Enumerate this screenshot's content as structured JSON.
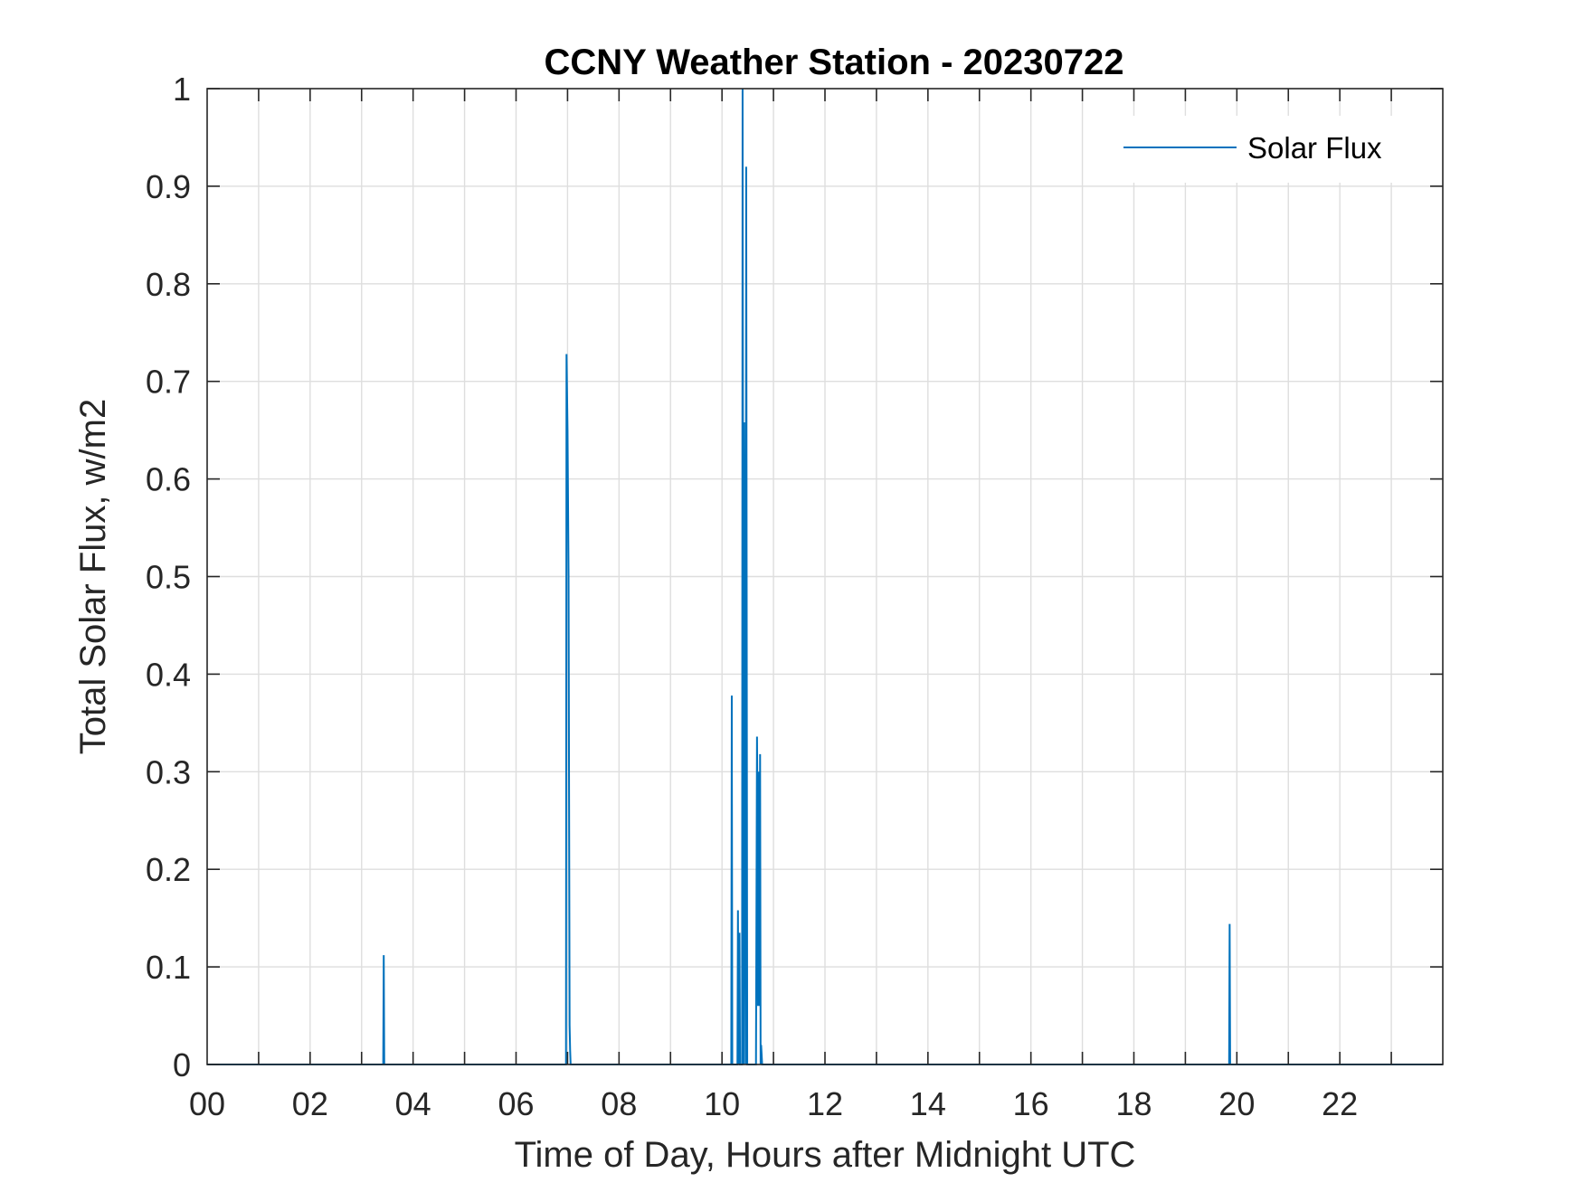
{
  "chart_data": {
    "type": "line",
    "title": "CCNY Weather Station - 20230722",
    "xlabel": "Time of Day, Hours after Midnight UTC",
    "ylabel": "Total Solar Flux, w/m2",
    "xlim": [
      0,
      24
    ],
    "ylim": [
      0,
      1
    ],
    "xticks": [
      0,
      2,
      4,
      6,
      8,
      10,
      12,
      14,
      16,
      18,
      20,
      22
    ],
    "xtick_labels": [
      "00",
      "02",
      "04",
      "06",
      "08",
      "10",
      "12",
      "14",
      "16",
      "18",
      "20",
      "22"
    ],
    "yticks": [
      0,
      0.1,
      0.2,
      0.3,
      0.4,
      0.5,
      0.6,
      0.7,
      0.8,
      0.9,
      1
    ],
    "ytick_labels": [
      "0",
      "0.1",
      "0.2",
      "0.3",
      "0.4",
      "0.5",
      "0.6",
      "0.7",
      "0.8",
      "0.9",
      "1"
    ],
    "grid": true,
    "legend_position": "top-right",
    "series": [
      {
        "name": "Solar Flux",
        "color": "#0072BD",
        "x": [
          0,
          3.42,
          3.43,
          3.44,
          6.97,
          6.98,
          7.0,
          7.02,
          7.04,
          7.05,
          7.06,
          10.18,
          10.19,
          10.2,
          10.3,
          10.31,
          10.32,
          10.34,
          10.35,
          10.36,
          10.39,
          10.4,
          10.42,
          10.43,
          10.46,
          10.47,
          10.49,
          10.5,
          10.66,
          10.68,
          10.69,
          10.7,
          10.71,
          10.72,
          10.73,
          10.74,
          10.75,
          10.76,
          10.78,
          19.85,
          19.86,
          19.87,
          24
        ],
        "y": [
          0,
          0,
          0.112,
          0,
          0,
          0.728,
          0.65,
          0.5,
          0.04,
          0.015,
          0,
          0,
          0.378,
          0,
          0,
          0.158,
          0,
          0.135,
          0,
          0,
          0,
          1.0,
          0,
          0.658,
          0,
          0.92,
          0,
          0,
          0,
          0.336,
          0.25,
          0.06,
          0.1,
          0.3,
          0.06,
          0.318,
          0,
          0.02,
          0,
          0,
          0.144,
          0,
          0
        ]
      }
    ]
  }
}
